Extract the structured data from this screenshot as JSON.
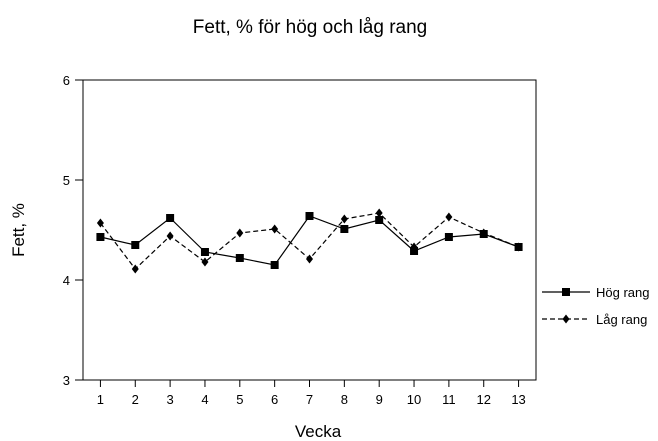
{
  "chart_data": {
    "type": "line",
    "title": "Fett, % för hög och låg rang",
    "xlabel": "Vecka",
    "ylabel": "Fett, %",
    "x": [
      "1",
      "2",
      "3",
      "4",
      "5",
      "6",
      "7",
      "8",
      "9",
      "10",
      "11",
      "12",
      "13"
    ],
    "xlim": [
      0.5,
      13.5
    ],
    "ylim": [
      3,
      6
    ],
    "yticks": [
      "3",
      "4",
      "5",
      "6"
    ],
    "grid": false,
    "legend": "right",
    "series": [
      {
        "name": "Hög rang",
        "line_style": "solid",
        "marker": "square",
        "color": "#000000",
        "values": [
          4.43,
          4.35,
          4.62,
          4.28,
          4.22,
          4.15,
          4.64,
          4.51,
          4.6,
          4.29,
          4.43,
          4.46,
          4.33
        ]
      },
      {
        "name": "Låg rang",
        "line_style": "dashed",
        "marker": "diamond",
        "color": "#000000",
        "values": [
          4.57,
          4.11,
          4.44,
          4.18,
          4.47,
          4.51,
          4.21,
          4.61,
          4.67,
          4.33,
          4.63,
          4.47,
          4.33
        ]
      }
    ]
  }
}
